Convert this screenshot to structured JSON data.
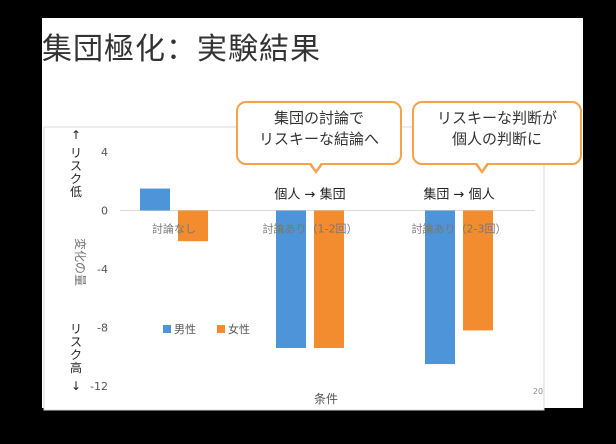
{
  "slide": {
    "title": "集団極化：実験結果",
    "page_number": "20"
  },
  "callouts": [
    "集団の討論で\nリスキーな結論へ",
    "リスキーな判断が\n個人の判断に"
  ],
  "chart_data": {
    "type": "bar",
    "categories": [
      "討論なし",
      "討論あり（1-2回）",
      "討論あり（2-3回）"
    ],
    "series": [
      {
        "name": "男性",
        "values": [
          1.5,
          -9.4,
          -10.5
        ],
        "color": "#4e94d8"
      },
      {
        "name": "女性",
        "values": [
          -2.1,
          -9.4,
          -8.2
        ],
        "color": "#f28c2f"
      }
    ],
    "xlabel": "条件",
    "ylabel": "変化の量",
    "ylim": [
      -12,
      4
    ],
    "yticks": [
      4,
      0,
      -4,
      -8,
      -12
    ],
    "y_side_labels": {
      "top": "↑ リスク低",
      "bottom": "リスク高 ↓"
    },
    "group_annotations": [
      "",
      "個人 → 集団",
      "集団 → 個人"
    ],
    "legend_position": "bottom-left",
    "grid": false
  }
}
